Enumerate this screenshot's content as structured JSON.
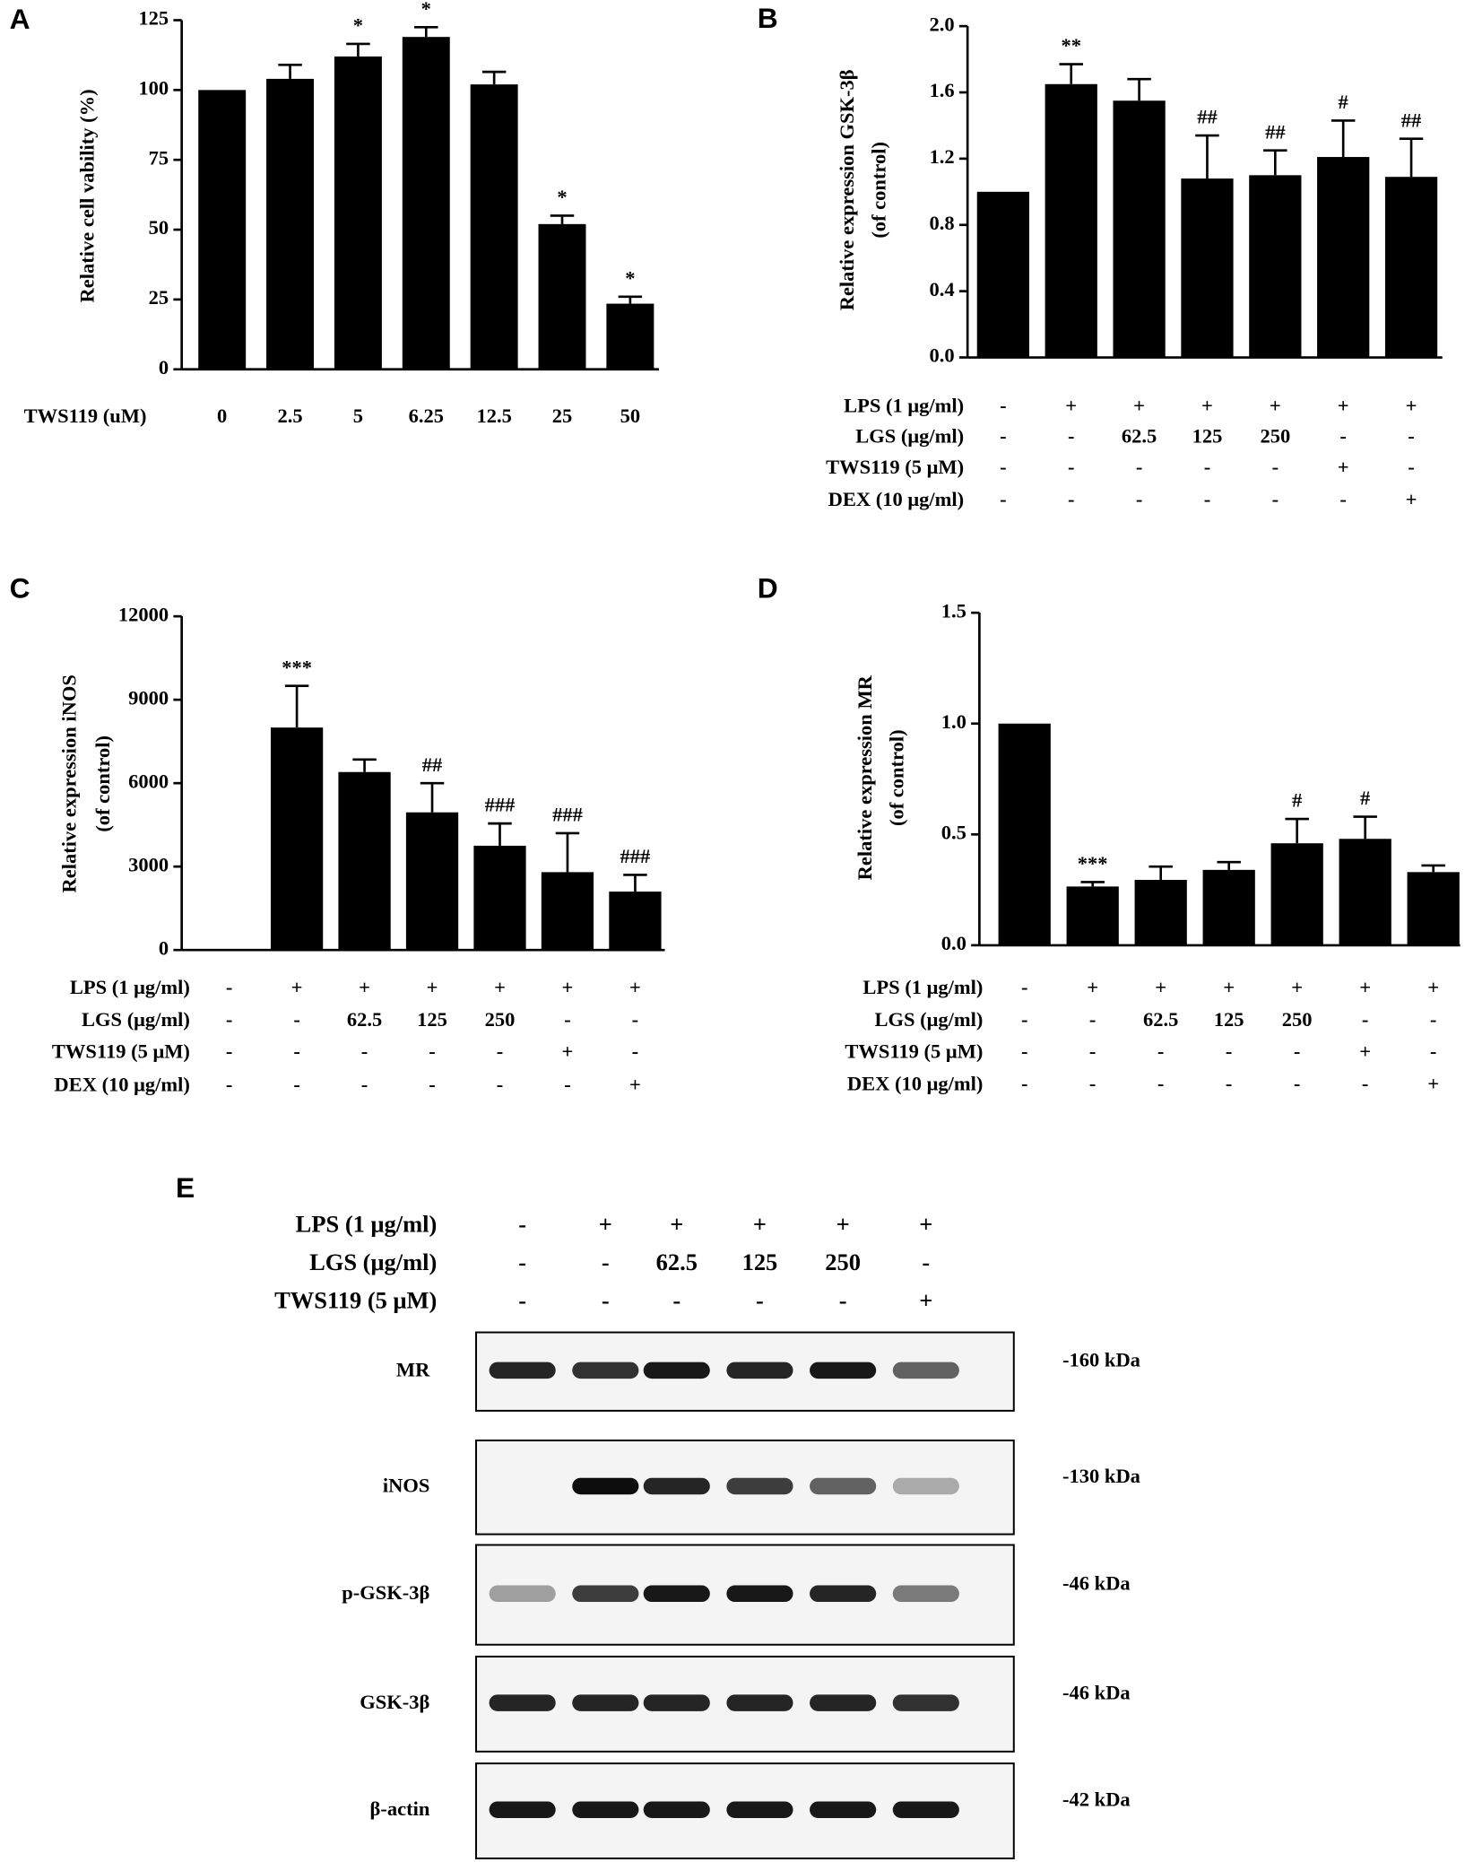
{
  "chart_data": [
    {
      "type": "bar",
      "label": "A",
      "ylabel": [
        "Relative cell vability (%)"
      ],
      "xlabel": "TWS119 (uM)",
      "categories": [
        "0",
        "2.5",
        "5",
        "6.25",
        "12.5",
        "25",
        "50"
      ],
      "values": [
        100,
        104,
        112,
        119,
        102,
        52,
        23.5
      ],
      "errors": [
        0,
        5,
        4.5,
        3.5,
        4.5,
        3,
        2.5
      ],
      "annotations": [
        null,
        null,
        "*",
        "*",
        null,
        "*",
        "*"
      ],
      "color": "#000000",
      "ylim": [
        0,
        125
      ],
      "yticks": [
        0,
        25,
        50,
        75,
        100,
        125
      ]
    },
    {
      "type": "bar",
      "label": "B",
      "ylabel": [
        "Relative expression GSK-3β",
        "(of control)"
      ],
      "values": [
        1.0,
        1.65,
        1.55,
        1.08,
        1.1,
        1.21,
        1.09
      ],
      "errors": [
        0,
        0.12,
        0.13,
        0.26,
        0.15,
        0.22,
        0.23
      ],
      "annotations": [
        null,
        "**",
        null,
        "##",
        "##",
        "#",
        "##"
      ],
      "conditions": [
        {
          "label": "LPS (1 μg/ml)",
          "values": [
            "-",
            "+",
            "+",
            "+",
            "+",
            "+",
            "+"
          ]
        },
        {
          "label": "LGS (μg/ml)",
          "values": [
            "-",
            "-",
            "62.5",
            "125",
            "250",
            "-",
            "-"
          ]
        },
        {
          "label": "TWS119 (5 μM)",
          "values": [
            "-",
            "-",
            "-",
            "-",
            "-",
            "+",
            "-"
          ]
        },
        {
          "label": "DEX (10 μg/ml)",
          "values": [
            "-",
            "-",
            "-",
            "-",
            "-",
            "-",
            "+"
          ]
        }
      ],
      "color": "#000000",
      "ylim": [
        0,
        2.0
      ],
      "yticks": [
        {
          "value": 0,
          "label": "0.0"
        },
        0.4,
        0.8,
        1.2,
        1.6,
        {
          "value": 2,
          "label": "2.0"
        }
      ]
    },
    {
      "type": "bar",
      "label": "C",
      "ylabel": [
        "Relative expression iNOS",
        "(of control)"
      ],
      "values": [
        1,
        8000,
        6400,
        4950,
        3750,
        2800,
        2100
      ],
      "errors": [
        0,
        1500,
        450,
        1050,
        800,
        1400,
        600
      ],
      "annotations": [
        null,
        "***",
        null,
        "##",
        "###",
        "###",
        "###"
      ],
      "conditions": [
        {
          "label": "LPS (1 μg/ml)",
          "values": [
            "-",
            "+",
            "+",
            "+",
            "+",
            "+",
            "+"
          ]
        },
        {
          "label": "LGS (μg/ml)",
          "values": [
            "-",
            "-",
            "62.5",
            "125",
            "250",
            "-",
            "-"
          ]
        },
        {
          "label": "TWS119 (5 μM)",
          "values": [
            "-",
            "-",
            "-",
            "-",
            "-",
            "+",
            "-"
          ]
        },
        {
          "label": "DEX (10 μg/ml)",
          "values": [
            "-",
            "-",
            "-",
            "-",
            "-",
            "-",
            "+"
          ]
        }
      ],
      "color": "#000000",
      "ylim": [
        0,
        12000
      ],
      "yticks": [
        0,
        3000,
        6000,
        9000,
        12000
      ]
    },
    {
      "type": "bar",
      "label": "D",
      "ylabel": [
        "Relative expression MR",
        "(of control)"
      ],
      "values": [
        1.0,
        0.265,
        0.295,
        0.34,
        0.46,
        0.48,
        0.33
      ],
      "errors": [
        0,
        0.02,
        0.06,
        0.035,
        0.11,
        0.1,
        0.03
      ],
      "annotations": [
        null,
        "***",
        null,
        null,
        "#",
        "#",
        null
      ],
      "conditions": [
        {
          "label": "LPS (1 μg/ml)",
          "values": [
            "-",
            "+",
            "+",
            "+",
            "+",
            "+",
            "+"
          ]
        },
        {
          "label": "LGS (μg/ml)",
          "values": [
            "-",
            "-",
            "62.5",
            "125",
            "250",
            "-",
            "-"
          ]
        },
        {
          "label": "TWS119 (5 μM)",
          "values": [
            "-",
            "-",
            "-",
            "-",
            "-",
            "+",
            "-"
          ]
        },
        {
          "label": "DEX (10 μg/ml)",
          "values": [
            "-",
            "-",
            "-",
            "-",
            "-",
            "-",
            "+"
          ]
        }
      ],
      "color": "#000000",
      "ylim": [
        0,
        1.5
      ],
      "yticks": [
        {
          "value": 0,
          "label": "0.0"
        },
        0.5,
        {
          "value": 1,
          "label": "1.0"
        },
        1.5
      ]
    }
  ],
  "blot": {
    "label": "E",
    "conditions": [
      {
        "label": "LPS (1 μg/ml)",
        "values": [
          "-",
          "+",
          "+",
          "+",
          "+",
          "+"
        ]
      },
      {
        "label": "LGS (μg/ml)",
        "values": [
          "-",
          "-",
          "62.5",
          "125",
          "250",
          "-"
        ]
      },
      {
        "label": "TWS119 (5 μM)",
        "values": [
          "-",
          "-",
          "-",
          "-",
          "-",
          "+"
        ]
      }
    ],
    "bands": [
      {
        "name": "MR",
        "size": "-160 kDa",
        "intensity": [
          0.85,
          0.8,
          0.9,
          0.85,
          0.9,
          0.6
        ]
      },
      {
        "name": "iNOS",
        "size": "-130 kDa",
        "intensity": [
          0,
          0.95,
          0.85,
          0.75,
          0.6,
          0.3
        ]
      },
      {
        "name": "p-GSK-3β",
        "size": "-46 kDa",
        "intensity": [
          0.35,
          0.75,
          0.9,
          0.9,
          0.85,
          0.5
        ]
      },
      {
        "name": "GSK-3β",
        "size": "-46 kDa",
        "intensity": [
          0.85,
          0.85,
          0.85,
          0.85,
          0.85,
          0.8
        ]
      },
      {
        "name": "β-actin",
        "size": "-42 kDa",
        "intensity": [
          0.9,
          0.9,
          0.9,
          0.9,
          0.9,
          0.9
        ]
      }
    ]
  }
}
